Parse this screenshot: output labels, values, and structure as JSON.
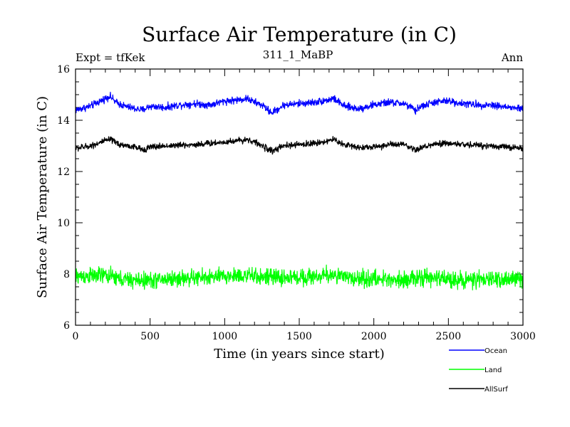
{
  "header": {
    "title": "Surface Air Temperature (in C)",
    "subtitle": "311_1_MaBP",
    "left_label": "Expt = tfKek",
    "right_label": "Ann"
  },
  "chart_data": {
    "type": "line",
    "title": "Surface Air Temperature (in C)",
    "xlabel": "Time (in years since start)",
    "ylabel": "Surface Air Temperature (in C)",
    "xlim": [
      0,
      3000
    ],
    "ylim": [
      6,
      16
    ],
    "xticks": [
      "0",
      "500",
      "1000",
      "1500",
      "2000",
      "2500",
      "3000"
    ],
    "yticks": [
      "6",
      "8",
      "10",
      "12",
      "14",
      "16"
    ],
    "grid": false,
    "legend_position": "bottom-right, below plot",
    "series": [
      {
        "name": "Ocean",
        "color": "#0000ff",
        "x": [
          0,
          100,
          150,
          200,
          230,
          270,
          330,
          400,
          450,
          500,
          600,
          700,
          800,
          900,
          1000,
          1100,
          1150,
          1200,
          1250,
          1300,
          1320,
          1400,
          1500,
          1600,
          1700,
          1730,
          1780,
          1800,
          1900,
          2000,
          2100,
          2200,
          2250,
          2280,
          2300,
          2400,
          2500,
          2600,
          2700,
          2800,
          2900,
          3000
        ],
        "values": [
          14.4,
          14.55,
          14.7,
          14.85,
          14.95,
          14.7,
          14.55,
          14.45,
          14.4,
          14.55,
          14.5,
          14.6,
          14.65,
          14.6,
          14.75,
          14.8,
          14.85,
          14.7,
          14.6,
          14.35,
          14.3,
          14.6,
          14.65,
          14.7,
          14.8,
          14.85,
          14.65,
          14.55,
          14.45,
          14.6,
          14.7,
          14.65,
          14.5,
          14.35,
          14.5,
          14.7,
          14.75,
          14.65,
          14.6,
          14.6,
          14.5,
          14.45
        ],
        "noise": 0.07
      },
      {
        "name": "Land",
        "color": "#00ff00",
        "x": [
          0,
          200,
          300,
          400,
          500,
          600,
          800,
          1000,
          1100,
          1200,
          1400,
          1600,
          1700,
          1730,
          1800,
          2000,
          2200,
          2400,
          2500,
          2700,
          2800,
          3000
        ],
        "values": [
          7.9,
          7.95,
          7.8,
          7.75,
          7.75,
          7.8,
          7.85,
          7.9,
          7.95,
          7.9,
          7.85,
          7.9,
          7.95,
          8.0,
          7.85,
          7.8,
          7.8,
          7.85,
          7.8,
          7.75,
          7.8,
          7.8
        ],
        "noise": 0.16
      },
      {
        "name": "AllSurf",
        "color": "#000000",
        "x": [
          0,
          100,
          200,
          230,
          300,
          400,
          450,
          500,
          600,
          800,
          1000,
          1150,
          1200,
          1300,
          1320,
          1400,
          1600,
          1700,
          1730,
          1800,
          1900,
          2000,
          2100,
          2200,
          2280,
          2300,
          2400,
          2500,
          2600,
          2800,
          3000
        ],
        "values": [
          12.9,
          13.0,
          13.2,
          13.25,
          13.05,
          12.95,
          12.85,
          12.95,
          13.0,
          13.05,
          13.15,
          13.25,
          13.15,
          12.85,
          12.8,
          13.0,
          13.1,
          13.2,
          13.25,
          13.05,
          12.95,
          12.95,
          13.05,
          13.05,
          12.8,
          12.9,
          13.05,
          13.1,
          13.05,
          13.0,
          12.9
        ],
        "noise": 0.06
      }
    ]
  }
}
